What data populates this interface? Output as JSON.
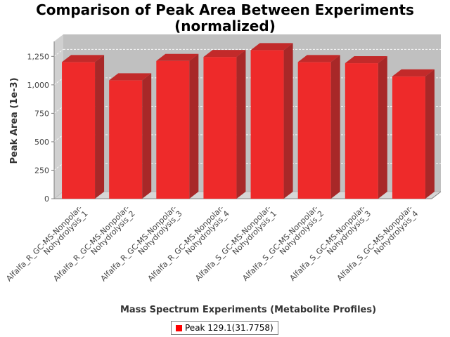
{
  "chart_data": {
    "type": "bar",
    "title_lines": [
      "Comparison of Peak Area Between Experiments",
      "(normalized)"
    ],
    "xlabel": "Mass Spectrum Experiments (Metabolite Profiles)",
    "ylabel": "Peak Area (1e-3)",
    "ylim": [
      0,
      1400
    ],
    "yticks": [
      {
        "value": 0,
        "label": "0"
      },
      {
        "value": 250,
        "label": "250"
      },
      {
        "value": 500,
        "label": "500"
      },
      {
        "value": 750,
        "label": "750"
      },
      {
        "value": 1000,
        "label": "1,000"
      },
      {
        "value": 1250,
        "label": "1,250"
      }
    ],
    "grid": true,
    "legend_position": "bottom",
    "categories": [
      [
        "Alfalfa_R_GC-MS-Nonpolar-",
        "Nohydrolysis_1"
      ],
      [
        "Alfalfa_R_GC-MS-Nonpolar-",
        "Nohydrolysis_2"
      ],
      [
        "Alfalfa_R_GC-MS-Nonpolar-",
        "Nohydrolysis_3"
      ],
      [
        "Alfalfa_R_GC-MS-Nonpolar-",
        "Nohydrolysis_4"
      ],
      [
        "Alfalfa_S_GC-MS-Nonpolar-",
        "Nohydrolysis_1"
      ],
      [
        "Alfalfa_S_GC-MS-Nonpolar-",
        "Nohydrolysis_2"
      ],
      [
        "Alfalfa_S_GC-MS-Nonpolar-",
        "Nohydrolysis_3"
      ],
      [
        "Alfalfa_S_GC-MS-Nonpolar-",
        "Nohydrolysis_4"
      ]
    ],
    "series": [
      {
        "name": "Peak 129.1(31.7758)",
        "color": "#ff0000",
        "values": [
          1200,
          1040,
          1210,
          1245,
          1305,
          1200,
          1190,
          1075
        ]
      }
    ],
    "style": {
      "plot_background": "#c0c0c0",
      "bar_front": "#ee2a2a",
      "bar_top": "#c22a2a",
      "bar_side": "#a82828",
      "gridline": "#ffffff",
      "axis": "#808080"
    }
  }
}
